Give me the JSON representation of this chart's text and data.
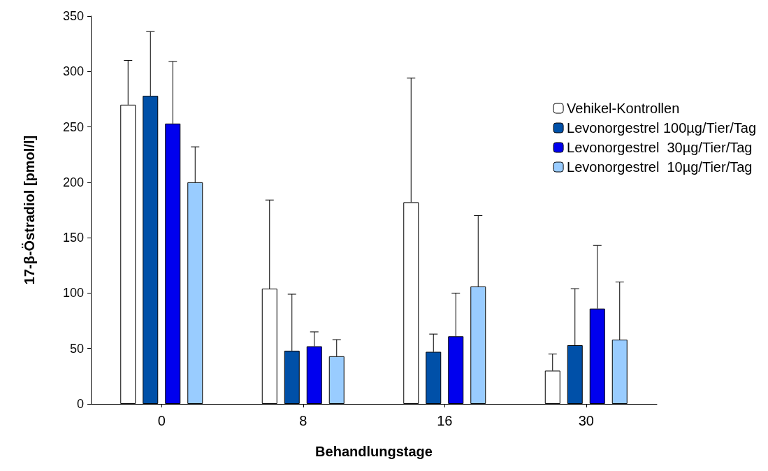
{
  "chart_data": {
    "type": "bar",
    "xlabel": "Behandlungstage",
    "ylabel": "17-β-Östradiol [pmol/l]",
    "categories": [
      "0",
      "8",
      "16",
      "30"
    ],
    "series": [
      {
        "name": "Vehikel-Kontrollen",
        "color": "#ffffff",
        "values": [
          270,
          104,
          182,
          30
        ],
        "errors": [
          [
            270,
            310
          ],
          [
            104,
            184
          ],
          [
            182,
            294
          ],
          [
            30,
            45
          ]
        ]
      },
      {
        "name": "Levonorgestrel 100µg/Tier/Tag",
        "color": "#0050a8",
        "values": [
          278,
          48,
          47,
          53
        ],
        "errors": [
          [
            278,
            336
          ],
          [
            48,
            99
          ],
          [
            47,
            63
          ],
          [
            53,
            104
          ]
        ]
      },
      {
        "name": "Levonorgestrel  30µg/Tier/Tag",
        "color": "#0000ee",
        "values": [
          253,
          52,
          61,
          86
        ],
        "errors": [
          [
            253,
            309
          ],
          [
            52,
            65
          ],
          [
            61,
            100
          ],
          [
            86,
            143
          ]
        ]
      },
      {
        "name": "Levonorgestrel  10µg/Tier/Tag",
        "color": "#99ccff",
        "values": [
          200,
          43,
          106,
          58
        ],
        "errors": [
          [
            200,
            232
          ],
          [
            43,
            58
          ],
          [
            106,
            170
          ],
          [
            58,
            110
          ]
        ]
      }
    ],
    "ylim": [
      0,
      350
    ],
    "yticks": [
      0,
      50,
      100,
      150,
      200,
      250,
      300,
      350
    ],
    "grid": false,
    "legend": "top right"
  }
}
